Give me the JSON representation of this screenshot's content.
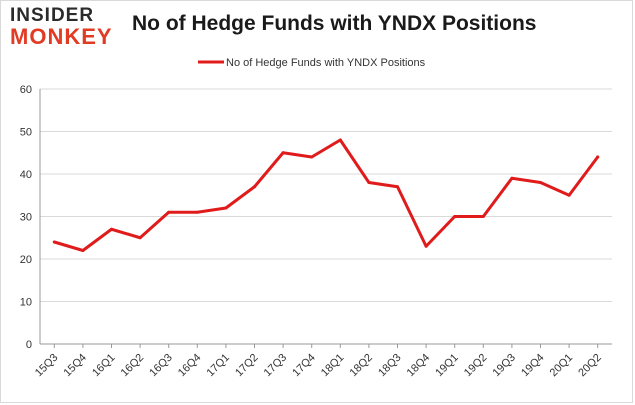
{
  "logo": {
    "line1": "INSIDER",
    "line2": "MONKEY"
  },
  "colors": {
    "series": "#e01b1b",
    "grid": "#d9d9d9",
    "axis": "#999999"
  },
  "chart_data": {
    "type": "line",
    "title": "No of Hedge Funds with YNDX Positions",
    "xlabel": "",
    "ylabel": "",
    "categories": [
      "15Q3",
      "15Q4",
      "16Q1",
      "16Q2",
      "16Q3",
      "16Q4",
      "17Q1",
      "17Q2",
      "17Q3",
      "17Q4",
      "18Q1",
      "18Q2",
      "18Q3",
      "18Q4",
      "19Q1",
      "19Q2",
      "19Q3",
      "19Q4",
      "20Q1",
      "20Q2"
    ],
    "series": [
      {
        "name": "No of Hedge Funds with YNDX Positions",
        "values": [
          24,
          22,
          27,
          25,
          31,
          31,
          32,
          37,
          45,
          44,
          48,
          38,
          37,
          23,
          30,
          30,
          39,
          38,
          35,
          44
        ]
      }
    ],
    "ylim": [
      0,
      60
    ],
    "yticks": [
      0,
      10,
      20,
      30,
      40,
      50,
      60
    ],
    "grid": true,
    "legend": "top-center"
  }
}
